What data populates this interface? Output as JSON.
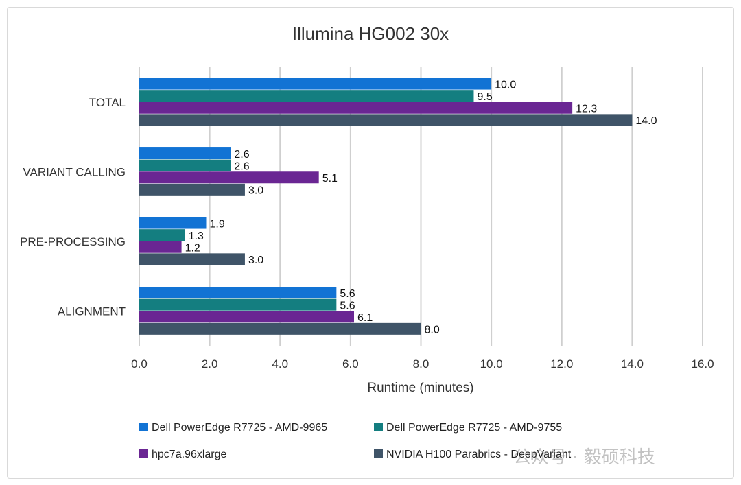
{
  "chart_data": {
    "type": "bar",
    "orientation": "horizontal",
    "title": "Illumina HG002 30x",
    "xlabel": "Runtime (minutes)",
    "ylabel": "",
    "xlim": [
      0,
      16
    ],
    "xticks": [
      0,
      2,
      4,
      6,
      8,
      10,
      12,
      14,
      16
    ],
    "xtick_labels": [
      "0.0",
      "2.0",
      "4.0",
      "6.0",
      "8.0",
      "10.0",
      "12.0",
      "14.0",
      "16.0"
    ],
    "grid": "vertical",
    "categories": [
      "TOTAL",
      "VARIANT CALLING",
      "PRE-PROCESSING",
      "ALIGNMENT"
    ],
    "series": [
      {
        "name": "Dell PowerEdge R7725 - AMD-9965",
        "color": "#1273d4",
        "values": [
          10.0,
          2.6,
          1.9,
          5.6
        ],
        "labels": [
          "10.0",
          "2.6",
          "1.9",
          "5.6"
        ]
      },
      {
        "name": "Dell PowerEdge R7725 - AMD-9755",
        "color": "#147e80",
        "values": [
          9.5,
          2.6,
          1.3,
          5.6
        ],
        "labels": [
          "9.5",
          "2.6",
          "1.3",
          "5.6"
        ]
      },
      {
        "name": "hpc7a.96xlarge",
        "color": "#6a2693",
        "values": [
          12.3,
          5.1,
          1.2,
          6.1
        ],
        "labels": [
          "12.3",
          "5.1",
          "1.2",
          "6.1"
        ]
      },
      {
        "name": "NVIDIA H100 Parabrics - DeepVariant",
        "color": "#3f5468",
        "values": [
          14.0,
          3.0,
          3.0,
          8.0
        ],
        "labels": [
          "14.0",
          "3.0",
          "3.0",
          "8.0"
        ]
      }
    ],
    "legend": "bottom"
  },
  "watermark": "公众号 · 毅硕科技"
}
